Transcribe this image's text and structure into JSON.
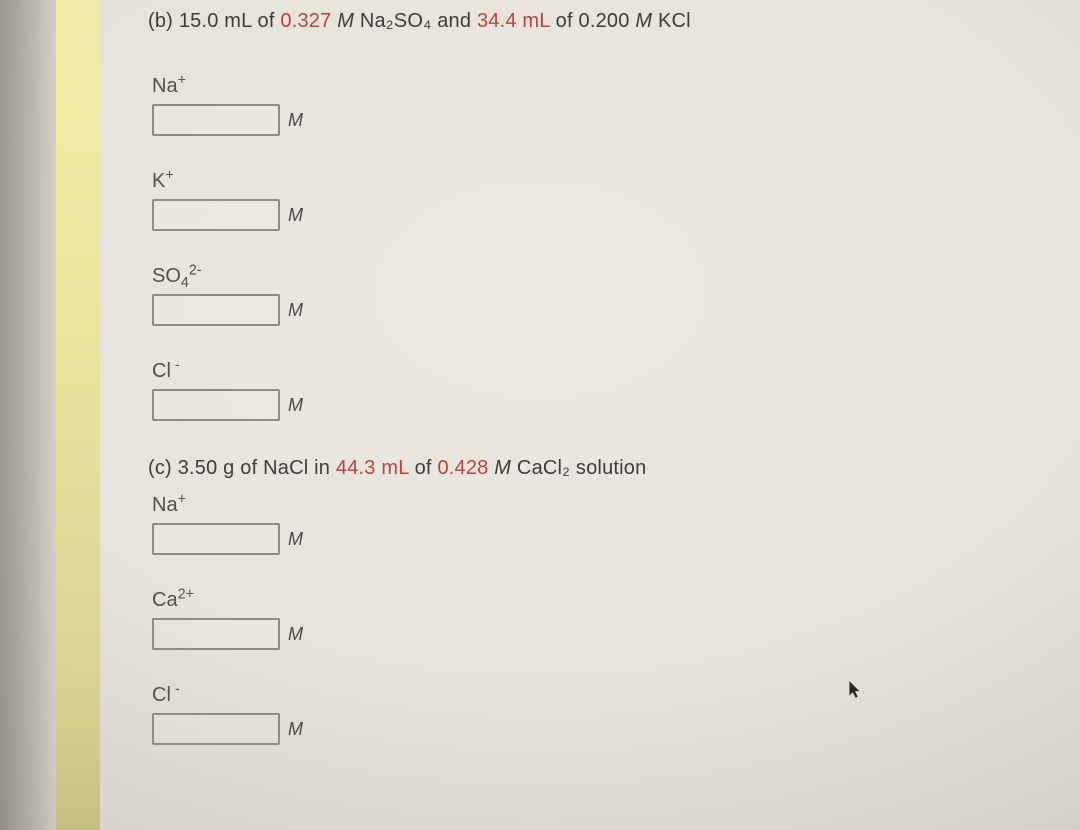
{
  "partB": {
    "label": "(b)",
    "vol1": "15.0 mL",
    "of1": "of",
    "conc1": "0.327",
    "m1": "M",
    "compound1_html": "Na₂SO₄",
    "and": "and",
    "vol2": "34.4 mL",
    "of2": "of",
    "conc2": "0.200",
    "m2": "M",
    "compound2": "KCl",
    "ions": [
      {
        "name": "sodium-ion",
        "label_html": "Na<sup>+</sup>",
        "unit": "M"
      },
      {
        "name": "potassium-ion",
        "label_html": "K<sup>+</sup>",
        "unit": "M"
      },
      {
        "name": "sulfate-ion",
        "label_html": "SO<sub>4</sub><sup>2-</sup>",
        "unit": "M"
      },
      {
        "name": "chloride-ion",
        "label_html": "Cl<sup> -</sup>",
        "unit": "M"
      }
    ]
  },
  "partC": {
    "label": "(c)",
    "mass": "3.50 g",
    "of1": "of",
    "compound1": "NaCl",
    "in": "in",
    "vol": "44.3 mL",
    "of2": "of",
    "conc": "0.428",
    "m": "M",
    "compound2_html": "CaCl₂",
    "solution": "solution",
    "ions": [
      {
        "name": "sodium-ion-c",
        "label_html": "Na<sup>+</sup>",
        "unit": "M"
      },
      {
        "name": "calcium-ion",
        "label_html": "Ca<sup>2+</sup>",
        "unit": "M"
      },
      {
        "name": "chloride-ion-c",
        "label_html": "Cl<sup> -</sup>",
        "unit": "M"
      }
    ]
  }
}
